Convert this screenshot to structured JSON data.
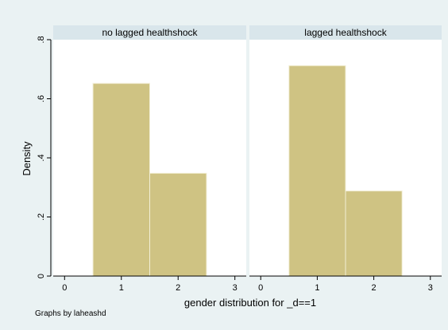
{
  "chart_data": {
    "type": "bar",
    "style": {
      "outer_bg": "#eaf2f3",
      "panel_bg": "#ffffff",
      "header_bg": "#d9e6eb",
      "bar_fill": "#cfc383",
      "bar_stroke": "#f2efd6",
      "axis_color": "#000000"
    },
    "ylabel": "Density",
    "xlabel": "gender distribution for _d==1",
    "xlim": [
      -0.2,
      3.2
    ],
    "ylim": [
      0,
      0.8
    ],
    "x_ticks": [
      "0",
      "1",
      "2",
      "3"
    ],
    "y_ticks": [
      "0",
      ".2",
      ".4",
      ".6",
      ".8"
    ],
    "caption": "Graphs by laheashd",
    "panels": [
      {
        "title": "no lagged healthshock",
        "bars": [
          {
            "x0": 0.5,
            "x1": 1.5,
            "value": 0.652
          },
          {
            "x0": 1.5,
            "x1": 2.5,
            "value": 0.348
          }
        ]
      },
      {
        "title": "lagged healthshock",
        "bars": [
          {
            "x0": 0.5,
            "x1": 1.5,
            "value": 0.712
          },
          {
            "x0": 1.5,
            "x1": 2.5,
            "value": 0.288
          }
        ]
      }
    ]
  }
}
